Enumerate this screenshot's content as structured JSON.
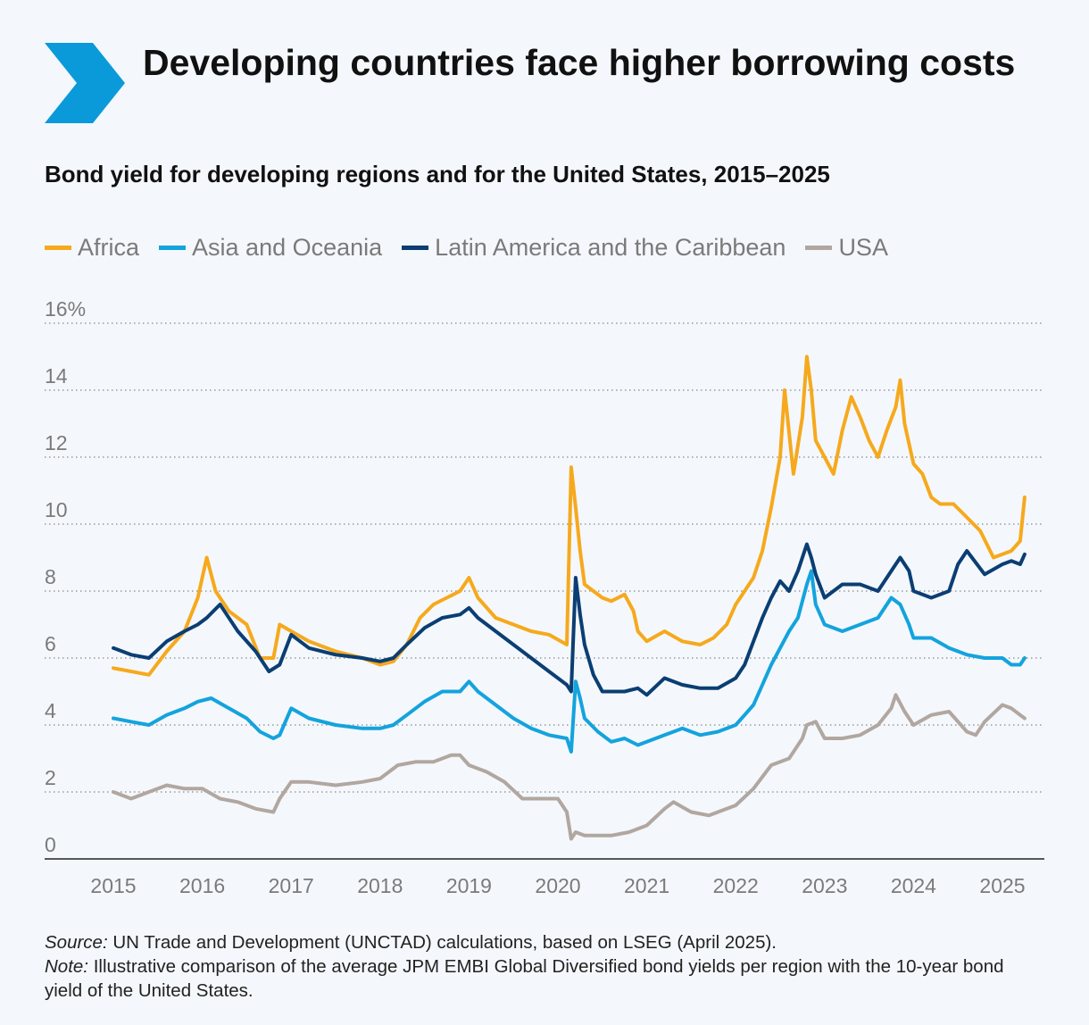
{
  "title": "Developing countries face higher borrowing costs",
  "subtitle": "Bond yield for developing regions and for the United States, 2015–2025",
  "source_label": "Source:",
  "source_text": " UN Trade and Development (UNCTAD) calculations, based on LSEG (April 2025).",
  "note_label": "Note:",
  "note_text": " Illustrative comparison of the average JPM EMBI Global Diversified bond yields per region with the 10-year bond yield of the United States.",
  "colors": {
    "accent": "#0a9ad9",
    "africa": "#f6a91d",
    "asia": "#14a3dd",
    "latam": "#0b3e73",
    "usa": "#b1a7a0",
    "axis_text": "#7a7a7a",
    "grid": "#9a9a9a"
  },
  "chart_data": {
    "type": "line",
    "x_unit": "year",
    "ylim": [
      0,
      16
    ],
    "y_ticks": [
      {
        "value": 0,
        "label": "0"
      },
      {
        "value": 2,
        "label": "2"
      },
      {
        "value": 4,
        "label": "4"
      },
      {
        "value": 6,
        "label": "6"
      },
      {
        "value": 8,
        "label": "8"
      },
      {
        "value": 10,
        "label": "10"
      },
      {
        "value": 12,
        "label": "12"
      },
      {
        "value": 14,
        "label": "14"
      },
      {
        "value": 16,
        "label": "16%"
      }
    ],
    "x_ticks": [
      "2015",
      "2016",
      "2017",
      "2018",
      "2019",
      "2020",
      "2021",
      "2022",
      "2023",
      "2024",
      "2025"
    ],
    "grid": "horizontal dotted",
    "legend": "top",
    "series": [
      {
        "name": "Africa",
        "color": "#f6a91d",
        "x": [
          2015.0,
          2015.2,
          2015.4,
          2015.6,
          2015.8,
          2015.95,
          2016.05,
          2016.15,
          2016.3,
          2016.5,
          2016.65,
          2016.8,
          2016.87,
          2017.0,
          2017.2,
          2017.5,
          2017.8,
          2018.0,
          2018.15,
          2018.3,
          2018.45,
          2018.6,
          2018.75,
          2018.9,
          2019.0,
          2019.1,
          2019.3,
          2019.5,
          2019.7,
          2019.9,
          2020.1,
          2020.15,
          2020.2,
          2020.25,
          2020.3,
          2020.4,
          2020.5,
          2020.6,
          2020.75,
          2020.85,
          2020.9,
          2021.0,
          2021.2,
          2021.4,
          2021.6,
          2021.75,
          2021.9,
          2022.0,
          2022.1,
          2022.2,
          2022.3,
          2022.4,
          2022.5,
          2022.55,
          2022.65,
          2022.75,
          2022.8,
          2022.85,
          2022.9,
          2023.0,
          2023.1,
          2023.2,
          2023.3,
          2023.4,
          2023.5,
          2023.6,
          2023.7,
          2023.8,
          2023.85,
          2023.9,
          2024.0,
          2024.1,
          2024.2,
          2024.3,
          2024.45,
          2024.6,
          2024.75,
          2024.9,
          2025.0,
          2025.1,
          2025.2,
          2025.25
        ],
        "values": [
          5.7,
          5.6,
          5.5,
          6.2,
          6.8,
          7.8,
          9.0,
          8.0,
          7.4,
          7.0,
          6.0,
          6.0,
          7.0,
          6.8,
          6.5,
          6.2,
          6.0,
          5.8,
          5.9,
          6.4,
          7.2,
          7.6,
          7.8,
          8.0,
          8.4,
          7.8,
          7.2,
          7.0,
          6.8,
          6.7,
          6.4,
          11.7,
          10.5,
          9.2,
          8.2,
          8.0,
          7.8,
          7.7,
          7.9,
          7.4,
          6.8,
          6.5,
          6.8,
          6.5,
          6.4,
          6.6,
          7.0,
          7.6,
          8.0,
          8.4,
          9.2,
          10.5,
          12.0,
          14.0,
          11.5,
          13.2,
          15.0,
          14.0,
          12.5,
          12.0,
          11.5,
          12.8,
          13.8,
          13.2,
          12.5,
          12.0,
          12.8,
          13.5,
          14.3,
          13.0,
          11.8,
          11.5,
          10.8,
          10.6,
          10.6,
          10.2,
          9.8,
          9.0,
          9.1,
          9.2,
          9.5,
          10.8
        ]
      },
      {
        "name": "Asia and Oceania",
        "color": "#14a3dd",
        "x": [
          2015.0,
          2015.2,
          2015.4,
          2015.6,
          2015.8,
          2015.95,
          2016.1,
          2016.3,
          2016.5,
          2016.65,
          2016.8,
          2016.87,
          2017.0,
          2017.2,
          2017.5,
          2017.8,
          2018.0,
          2018.15,
          2018.3,
          2018.5,
          2018.7,
          2018.9,
          2019.0,
          2019.1,
          2019.3,
          2019.5,
          2019.7,
          2019.9,
          2020.1,
          2020.15,
          2020.2,
          2020.25,
          2020.3,
          2020.45,
          2020.6,
          2020.75,
          2020.9,
          2021.0,
          2021.2,
          2021.4,
          2021.6,
          2021.8,
          2022.0,
          2022.1,
          2022.2,
          2022.3,
          2022.4,
          2022.5,
          2022.6,
          2022.7,
          2022.8,
          2022.85,
          2022.9,
          2023.0,
          2023.2,
          2023.4,
          2023.6,
          2023.75,
          2023.85,
          2023.95,
          2024.0,
          2024.2,
          2024.4,
          2024.6,
          2024.8,
          2025.0,
          2025.1,
          2025.2,
          2025.25
        ],
        "values": [
          4.2,
          4.1,
          4.0,
          4.3,
          4.5,
          4.7,
          4.8,
          4.5,
          4.2,
          3.8,
          3.6,
          3.7,
          4.5,
          4.2,
          4.0,
          3.9,
          3.9,
          4.0,
          4.3,
          4.7,
          5.0,
          5.0,
          5.3,
          5.0,
          4.6,
          4.2,
          3.9,
          3.7,
          3.6,
          3.2,
          5.3,
          4.8,
          4.2,
          3.8,
          3.5,
          3.6,
          3.4,
          3.5,
          3.7,
          3.9,
          3.7,
          3.8,
          4.0,
          4.3,
          4.6,
          5.2,
          5.8,
          6.3,
          6.8,
          7.2,
          8.2,
          8.6,
          7.6,
          7.0,
          6.8,
          7.0,
          7.2,
          7.8,
          7.6,
          7.0,
          6.6,
          6.6,
          6.3,
          6.1,
          6.0,
          6.0,
          5.8,
          5.8,
          6.0
        ]
      },
      {
        "name": "Latin America and the Caribbean",
        "color": "#0b3e73",
        "x": [
          2015.0,
          2015.2,
          2015.4,
          2015.6,
          2015.8,
          2015.95,
          2016.05,
          2016.2,
          2016.4,
          2016.6,
          2016.75,
          2016.87,
          2017.0,
          2017.2,
          2017.5,
          2017.8,
          2018.0,
          2018.15,
          2018.3,
          2018.5,
          2018.7,
          2018.9,
          2019.0,
          2019.1,
          2019.3,
          2019.5,
          2019.7,
          2019.9,
          2020.1,
          2020.15,
          2020.2,
          2020.25,
          2020.3,
          2020.4,
          2020.5,
          2020.6,
          2020.75,
          2020.9,
          2021.0,
          2021.2,
          2021.4,
          2021.6,
          2021.8,
          2022.0,
          2022.1,
          2022.2,
          2022.3,
          2022.4,
          2022.5,
          2022.6,
          2022.7,
          2022.8,
          2022.85,
          2022.9,
          2023.0,
          2023.2,
          2023.4,
          2023.6,
          2023.75,
          2023.85,
          2023.95,
          2024.0,
          2024.2,
          2024.4,
          2024.5,
          2024.6,
          2024.8,
          2025.0,
          2025.1,
          2025.2,
          2025.25
        ],
        "values": [
          6.3,
          6.1,
          6.0,
          6.5,
          6.8,
          7.0,
          7.2,
          7.6,
          6.8,
          6.2,
          5.6,
          5.8,
          6.7,
          6.3,
          6.1,
          6.0,
          5.9,
          6.0,
          6.4,
          6.9,
          7.2,
          7.3,
          7.5,
          7.2,
          6.8,
          6.4,
          6.0,
          5.6,
          5.2,
          5.0,
          8.4,
          7.3,
          6.4,
          5.5,
          5.0,
          5.0,
          5.0,
          5.1,
          4.9,
          5.4,
          5.2,
          5.1,
          5.1,
          5.4,
          5.8,
          6.5,
          7.2,
          7.8,
          8.3,
          8.0,
          8.6,
          9.4,
          9.0,
          8.5,
          7.8,
          8.2,
          8.2,
          8.0,
          8.6,
          9.0,
          8.6,
          8.0,
          7.8,
          8.0,
          8.8,
          9.2,
          8.5,
          8.8,
          8.9,
          8.8,
          9.1
        ]
      },
      {
        "name": "USA",
        "color": "#b1a7a0",
        "x": [
          2015.0,
          2015.2,
          2015.4,
          2015.6,
          2015.8,
          2016.0,
          2016.2,
          2016.4,
          2016.6,
          2016.8,
          2016.87,
          2017.0,
          2017.2,
          2017.5,
          2017.8,
          2018.0,
          2018.2,
          2018.4,
          2018.6,
          2018.8,
          2018.9,
          2019.0,
          2019.2,
          2019.4,
          2019.6,
          2019.8,
          2020.0,
          2020.1,
          2020.15,
          2020.2,
          2020.3,
          2020.5,
          2020.6,
          2020.8,
          2021.0,
          2021.2,
          2021.3,
          2021.5,
          2021.7,
          2021.9,
          2022.0,
          2022.2,
          2022.4,
          2022.6,
          2022.75,
          2022.8,
          2022.9,
          2023.0,
          2023.2,
          2023.4,
          2023.6,
          2023.75,
          2023.8,
          2023.9,
          2024.0,
          2024.2,
          2024.4,
          2024.6,
          2024.7,
          2024.8,
          2025.0,
          2025.1,
          2025.2,
          2025.25
        ],
        "values": [
          2.0,
          1.8,
          2.0,
          2.2,
          2.1,
          2.1,
          1.8,
          1.7,
          1.5,
          1.4,
          1.8,
          2.3,
          2.3,
          2.2,
          2.3,
          2.4,
          2.8,
          2.9,
          2.9,
          3.1,
          3.1,
          2.8,
          2.6,
          2.3,
          1.8,
          1.8,
          1.8,
          1.4,
          0.6,
          0.8,
          0.7,
          0.7,
          0.7,
          0.8,
          1.0,
          1.5,
          1.7,
          1.4,
          1.3,
          1.5,
          1.6,
          2.1,
          2.8,
          3.0,
          3.6,
          4.0,
          4.1,
          3.6,
          3.6,
          3.7,
          4.0,
          4.5,
          4.9,
          4.4,
          4.0,
          4.3,
          4.4,
          3.8,
          3.7,
          4.1,
          4.6,
          4.5,
          4.3,
          4.2
        ]
      }
    ]
  }
}
